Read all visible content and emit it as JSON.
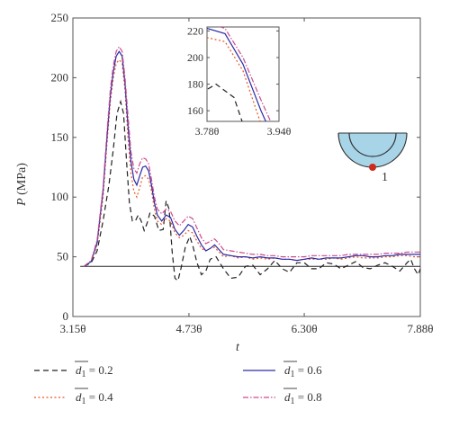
{
  "chart_data": {
    "type": "line",
    "xlabel": "t",
    "ylabel_var": "P",
    "ylabel_unit": " (MPa)",
    "xlim": [
      3.15,
      7.88
    ],
    "ylim": [
      0,
      250
    ],
    "x_tick_values": [
      3.15,
      4.73,
      6.3,
      7.88
    ],
    "x_tick_labels": [
      "3.15θ",
      "4.73θ",
      "6.30θ",
      "7.88θ"
    ],
    "y_ticks": [
      0,
      50,
      100,
      150,
      200,
      250
    ],
    "reference_line_y": 42,
    "legend_placement": "bottom",
    "series": [
      {
        "name": "d1 = 0.2",
        "sym": "d",
        "sub": "1",
        "valtext": " = 0.2",
        "color": "#222222",
        "dash": "6,4",
        "points": [
          [
            3.3,
            42
          ],
          [
            3.4,
            45
          ],
          [
            3.48,
            55
          ],
          [
            3.56,
            80
          ],
          [
            3.64,
            110
          ],
          [
            3.7,
            140
          ],
          [
            3.75,
            170
          ],
          [
            3.8,
            180
          ],
          [
            3.84,
            170
          ],
          [
            3.88,
            130
          ],
          [
            3.92,
            95
          ],
          [
            3.96,
            80
          ],
          [
            4.0,
            80
          ],
          [
            4.04,
            85
          ],
          [
            4.08,
            80
          ],
          [
            4.12,
            72
          ],
          [
            4.16,
            78
          ],
          [
            4.2,
            87
          ],
          [
            4.26,
            84
          ],
          [
            4.32,
            72
          ],
          [
            4.38,
            73
          ],
          [
            4.42,
            97
          ],
          [
            4.46,
            90
          ],
          [
            4.5,
            55
          ],
          [
            4.54,
            32
          ],
          [
            4.58,
            30
          ],
          [
            4.62,
            40
          ],
          [
            4.68,
            58
          ],
          [
            4.74,
            67
          ],
          [
            4.78,
            60
          ],
          [
            4.84,
            45
          ],
          [
            4.9,
            35
          ],
          [
            4.96,
            38
          ],
          [
            5.02,
            48
          ],
          [
            5.1,
            50
          ],
          [
            5.2,
            40
          ],
          [
            5.3,
            32
          ],
          [
            5.4,
            33
          ],
          [
            5.5,
            42
          ],
          [
            5.6,
            43
          ],
          [
            5.7,
            35
          ],
          [
            5.8,
            40
          ],
          [
            5.9,
            47
          ],
          [
            6.0,
            40
          ],
          [
            6.1,
            37
          ],
          [
            6.2,
            45
          ],
          [
            6.3,
            45
          ],
          [
            6.4,
            40
          ],
          [
            6.5,
            40
          ],
          [
            6.6,
            45
          ],
          [
            6.7,
            44
          ],
          [
            6.8,
            40
          ],
          [
            6.9,
            43
          ],
          [
            7.0,
            46
          ],
          [
            7.1,
            41
          ],
          [
            7.2,
            40
          ],
          [
            7.3,
            43
          ],
          [
            7.4,
            45
          ],
          [
            7.5,
            42
          ],
          [
            7.6,
            38
          ],
          [
            7.7,
            45
          ],
          [
            7.75,
            48
          ],
          [
            7.8,
            40
          ],
          [
            7.85,
            35
          ],
          [
            7.88,
            40
          ]
        ]
      },
      {
        "name": "d1 = 0.4",
        "sym": "d",
        "sub": "1",
        "valtext": " = 0.4",
        "color": "#e8561e",
        "dash": "2,2.5",
        "points": [
          [
            3.3,
            42
          ],
          [
            3.4,
            46
          ],
          [
            3.48,
            60
          ],
          [
            3.56,
            100
          ],
          [
            3.62,
            150
          ],
          [
            3.66,
            180
          ],
          [
            3.7,
            200
          ],
          [
            3.74,
            212
          ],
          [
            3.78,
            215
          ],
          [
            3.82,
            212
          ],
          [
            3.86,
            190
          ],
          [
            3.9,
            150
          ],
          [
            3.94,
            120
          ],
          [
            3.98,
            105
          ],
          [
            4.02,
            100
          ],
          [
            4.06,
            108
          ],
          [
            4.1,
            117
          ],
          [
            4.14,
            118
          ],
          [
            4.18,
            115
          ],
          [
            4.22,
            105
          ],
          [
            4.26,
            90
          ],
          [
            4.3,
            80
          ],
          [
            4.36,
            77
          ],
          [
            4.42,
            82
          ],
          [
            4.48,
            80
          ],
          [
            4.54,
            70
          ],
          [
            4.6,
            66
          ],
          [
            4.66,
            68
          ],
          [
            4.72,
            72
          ],
          [
            4.78,
            70
          ],
          [
            4.84,
            63
          ],
          [
            4.9,
            57
          ],
          [
            4.96,
            55
          ],
          [
            5.02,
            57
          ],
          [
            5.08,
            58
          ],
          [
            5.14,
            54
          ],
          [
            5.2,
            50
          ],
          [
            5.3,
            51
          ],
          [
            5.4,
            49
          ],
          [
            5.5,
            50
          ],
          [
            5.6,
            48
          ],
          [
            5.7,
            49
          ],
          [
            5.8,
            48
          ],
          [
            5.9,
            49
          ],
          [
            6.0,
            48
          ],
          [
            6.1,
            48
          ],
          [
            6.2,
            47
          ],
          [
            6.3,
            48
          ],
          [
            6.4,
            48
          ],
          [
            6.5,
            48
          ],
          [
            6.6,
            48
          ],
          [
            6.7,
            49
          ],
          [
            6.8,
            48
          ],
          [
            6.9,
            49
          ],
          [
            7.0,
            50
          ],
          [
            7.1,
            49
          ],
          [
            7.2,
            49
          ],
          [
            7.3,
            49
          ],
          [
            7.4,
            50
          ],
          [
            7.5,
            50
          ],
          [
            7.6,
            51
          ],
          [
            7.7,
            51
          ],
          [
            7.8,
            50
          ],
          [
            7.88,
            50
          ]
        ]
      },
      {
        "name": "d1 = 0.6",
        "sym": "d",
        "sub": "1",
        "valtext": " = 0.6",
        "color": "#2a2aa8",
        "dash": "",
        "points": [
          [
            3.3,
            42
          ],
          [
            3.4,
            46
          ],
          [
            3.48,
            62
          ],
          [
            3.56,
            105
          ],
          [
            3.62,
            155
          ],
          [
            3.66,
            185
          ],
          [
            3.7,
            205
          ],
          [
            3.74,
            218
          ],
          [
            3.78,
            222
          ],
          [
            3.82,
            218
          ],
          [
            3.86,
            195
          ],
          [
            3.9,
            160
          ],
          [
            3.94,
            130
          ],
          [
            3.98,
            115
          ],
          [
            4.02,
            110
          ],
          [
            4.06,
            118
          ],
          [
            4.1,
            125
          ],
          [
            4.14,
            126
          ],
          [
            4.18,
            122
          ],
          [
            4.22,
            110
          ],
          [
            4.26,
            95
          ],
          [
            4.3,
            85
          ],
          [
            4.36,
            80
          ],
          [
            4.42,
            85
          ],
          [
            4.48,
            83
          ],
          [
            4.54,
            73
          ],
          [
            4.6,
            68
          ],
          [
            4.66,
            72
          ],
          [
            4.72,
            77
          ],
          [
            4.78,
            75
          ],
          [
            4.84,
            67
          ],
          [
            4.9,
            60
          ],
          [
            4.96,
            55
          ],
          [
            5.02,
            57
          ],
          [
            5.08,
            60
          ],
          [
            5.14,
            56
          ],
          [
            5.2,
            52
          ],
          [
            5.3,
            51
          ],
          [
            5.4,
            50
          ],
          [
            5.5,
            50
          ],
          [
            5.6,
            49
          ],
          [
            5.7,
            50
          ],
          [
            5.8,
            49
          ],
          [
            5.9,
            49
          ],
          [
            6.0,
            48
          ],
          [
            6.1,
            48
          ],
          [
            6.2,
            47
          ],
          [
            6.3,
            48
          ],
          [
            6.4,
            49
          ],
          [
            6.5,
            48
          ],
          [
            6.6,
            49
          ],
          [
            6.7,
            49
          ],
          [
            6.8,
            49
          ],
          [
            6.9,
            50
          ],
          [
            7.0,
            51
          ],
          [
            7.1,
            51
          ],
          [
            7.2,
            50
          ],
          [
            7.3,
            50
          ],
          [
            7.4,
            51
          ],
          [
            7.5,
            51
          ],
          [
            7.6,
            52
          ],
          [
            7.7,
            52
          ],
          [
            7.8,
            52
          ],
          [
            7.88,
            52
          ]
        ]
      },
      {
        "name": "d1 = 0.8",
        "sym": "d",
        "sub": "1",
        "valtext": " = 0.8",
        "color": "#cc4b8e",
        "dash": "6,2,1.5,2",
        "points": [
          [
            3.3,
            42
          ],
          [
            3.4,
            47
          ],
          [
            3.48,
            64
          ],
          [
            3.56,
            108
          ],
          [
            3.62,
            160
          ],
          [
            3.66,
            190
          ],
          [
            3.7,
            210
          ],
          [
            3.74,
            222
          ],
          [
            3.78,
            226
          ],
          [
            3.82,
            222
          ],
          [
            3.86,
            200
          ],
          [
            3.9,
            168
          ],
          [
            3.94,
            138
          ],
          [
            3.98,
            124
          ],
          [
            4.02,
            120
          ],
          [
            4.06,
            128
          ],
          [
            4.1,
            133
          ],
          [
            4.14,
            132
          ],
          [
            4.18,
            128
          ],
          [
            4.22,
            115
          ],
          [
            4.26,
            100
          ],
          [
            4.3,
            90
          ],
          [
            4.36,
            86
          ],
          [
            4.42,
            90
          ],
          [
            4.48,
            88
          ],
          [
            4.54,
            80
          ],
          [
            4.6,
            76
          ],
          [
            4.66,
            80
          ],
          [
            4.72,
            84
          ],
          [
            4.78,
            82
          ],
          [
            4.84,
            74
          ],
          [
            4.9,
            66
          ],
          [
            4.96,
            61
          ],
          [
            5.02,
            63
          ],
          [
            5.08,
            65
          ],
          [
            5.14,
            61
          ],
          [
            5.2,
            56
          ],
          [
            5.3,
            55
          ],
          [
            5.4,
            54
          ],
          [
            5.5,
            53
          ],
          [
            5.6,
            52
          ],
          [
            5.7,
            52
          ],
          [
            5.8,
            51
          ],
          [
            5.9,
            51
          ],
          [
            6.0,
            50
          ],
          [
            6.1,
            50
          ],
          [
            6.2,
            50
          ],
          [
            6.3,
            50
          ],
          [
            6.4,
            51
          ],
          [
            6.5,
            51
          ],
          [
            6.6,
            51
          ],
          [
            6.7,
            51
          ],
          [
            6.8,
            51
          ],
          [
            6.9,
            52
          ],
          [
            7.0,
            52
          ],
          [
            7.1,
            52
          ],
          [
            7.2,
            52
          ],
          [
            7.3,
            52
          ],
          [
            7.4,
            53
          ],
          [
            7.5,
            53
          ],
          [
            7.6,
            53
          ],
          [
            7.7,
            54
          ],
          [
            7.8,
            54
          ],
          [
            7.88,
            54
          ]
        ]
      }
    ],
    "inset": {
      "xlim": [
        3.78,
        3.94
      ],
      "ylim": [
        152,
        223
      ],
      "x_tick_values": [
        3.78,
        3.94
      ],
      "x_tick_labels": [
        "3.78θ",
        "3.94θ"
      ],
      "y_ticks": [
        160,
        180,
        200,
        220
      ]
    },
    "annotation": {
      "label": "1",
      "circle_color": "#a8d4e8",
      "dot_color": "#cc2a1a"
    }
  }
}
